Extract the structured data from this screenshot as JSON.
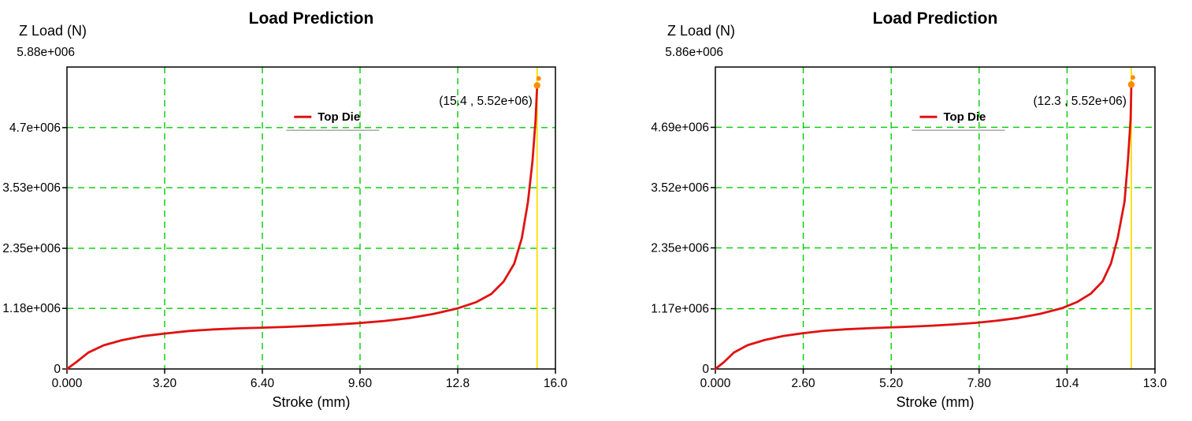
{
  "colors": {
    "series": "#e01212",
    "grid": "#00cc00",
    "marker": "#ff8c00",
    "marker_line": "#ffdd00",
    "annotation": "#ee1111",
    "axis": "#000000",
    "title": "#1a1a1a",
    "legend_rule": "#aaaaaa"
  },
  "chart_data": [
    {
      "type": "line",
      "title": "Load Prediction",
      "xlabel": "Stroke (mm)",
      "ylabel": "Z Load (N)",
      "xlim": [
        0,
        16
      ],
      "ylim": [
        0,
        5880000
      ],
      "grid": true,
      "legend": {
        "label": "Top Die",
        "position": "inside-top-center"
      },
      "annotation": "(15.4 , 5.52e+06)",
      "marker": {
        "x": 15.4,
        "y": 5520000
      },
      "x_ticks": [
        {
          "value": 0,
          "label": "0.000"
        },
        {
          "value": 3.2,
          "label": "3.20"
        },
        {
          "value": 6.4,
          "label": "6.40"
        },
        {
          "value": 9.6,
          "label": "9.60"
        },
        {
          "value": 12.8,
          "label": "12.8"
        },
        {
          "value": 16,
          "label": "16.0"
        }
      ],
      "y_ticks": [
        {
          "value": 0,
          "label": "0"
        },
        {
          "value": 1180000,
          "label": "1.18e+006"
        },
        {
          "value": 2350000,
          "label": "2.35e+006"
        },
        {
          "value": 3530000,
          "label": "3.53e+006"
        },
        {
          "value": 4700000,
          "label": "4.7e+006"
        }
      ],
      "y_top_tick": {
        "value": 5880000,
        "label": "5.88e+006"
      },
      "series": [
        {
          "name": "Top Die",
          "x": [
            0,
            0.3,
            0.7,
            1.2,
            1.8,
            2.5,
            3.2,
            4.0,
            4.8,
            5.6,
            6.4,
            7.2,
            8.0,
            8.8,
            9.6,
            10.4,
            11.2,
            12.0,
            12.8,
            13.4,
            13.9,
            14.3,
            14.65,
            14.9,
            15.1,
            15.25,
            15.35,
            15.4
          ],
          "y": [
            0,
            130000,
            320000,
            460000,
            560000,
            640000,
            690000,
            740000,
            770000,
            790000,
            805000,
            820000,
            840000,
            865000,
            895000,
            935000,
            990000,
            1070000,
            1180000,
            1300000,
            1460000,
            1700000,
            2050000,
            2550000,
            3250000,
            4050000,
            4850000,
            5520000
          ]
        }
      ]
    },
    {
      "type": "line",
      "title": "Load Prediction",
      "xlabel": "Stroke (mm)",
      "ylabel": "Z Load (N)",
      "xlim": [
        0,
        13
      ],
      "ylim": [
        0,
        5860000
      ],
      "grid": true,
      "legend": {
        "label": "Top Die",
        "position": "inside-top-center"
      },
      "annotation": "(12.3 , 5.52e+06)",
      "marker": {
        "x": 12.3,
        "y": 5520000
      },
      "x_ticks": [
        {
          "value": 0,
          "label": "0.000"
        },
        {
          "value": 2.6,
          "label": "2.60"
        },
        {
          "value": 5.2,
          "label": "5.20"
        },
        {
          "value": 7.8,
          "label": "7.80"
        },
        {
          "value": 10.4,
          "label": "10.4"
        },
        {
          "value": 13,
          "label": "13.0"
        }
      ],
      "y_ticks": [
        {
          "value": 0,
          "label": "0"
        },
        {
          "value": 1170000,
          "label": "1.17e+006"
        },
        {
          "value": 2350000,
          "label": "2.35e+006"
        },
        {
          "value": 3520000,
          "label": "3.52e+006"
        },
        {
          "value": 4690000,
          "label": "4.69e+006"
        }
      ],
      "y_top_tick": {
        "value": 5860000,
        "label": "5.86e+006"
      },
      "series": [
        {
          "name": "Top Die",
          "x": [
            0,
            0.25,
            0.55,
            0.95,
            1.45,
            2.0,
            2.55,
            3.2,
            3.85,
            4.5,
            5.1,
            5.75,
            6.4,
            7.05,
            7.7,
            8.3,
            8.95,
            9.6,
            10.25,
            10.7,
            11.1,
            11.45,
            11.7,
            11.9,
            12.1,
            12.2,
            12.28,
            12.3
          ],
          "y": [
            0,
            130000,
            320000,
            460000,
            560000,
            640000,
            690000,
            740000,
            770000,
            790000,
            805000,
            820000,
            840000,
            865000,
            895000,
            935000,
            990000,
            1070000,
            1180000,
            1300000,
            1460000,
            1700000,
            2050000,
            2550000,
            3250000,
            4050000,
            4850000,
            5520000
          ]
        }
      ]
    }
  ]
}
